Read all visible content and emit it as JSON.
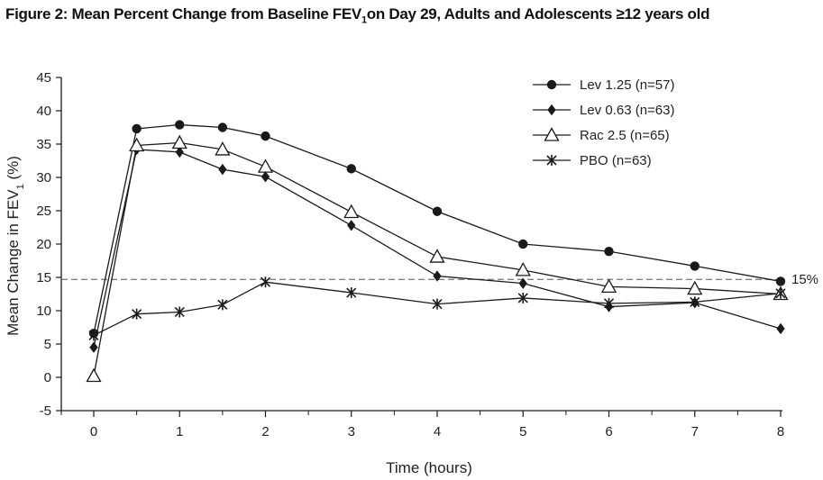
{
  "title": {
    "main": "Figure 2: Mean Percent Change from Baseline FEV",
    "sub": "1",
    "rest": "on Day 29, Adults and Adolescents ≥12 years old"
  },
  "chart_data": {
    "type": "line",
    "title": "Figure 2: Mean Percent Change from Baseline FEV1 on Day 29, Adults and Adolescents ≥12 years old",
    "xlabel": "Time (hours)",
    "ylabel": "Mean Change in FEV1 (%)",
    "xlim": [
      -0.4,
      8
    ],
    "ylim": [
      -5,
      45
    ],
    "x_ticks": [
      0,
      1,
      2,
      3,
      4,
      5,
      6,
      7,
      8
    ],
    "y_ticks": [
      -5,
      0,
      5,
      10,
      15,
      20,
      25,
      30,
      35,
      40,
      45
    ],
    "reference_line": {
      "value": 14.7,
      "label": "15%"
    },
    "grid": false,
    "legend_position": "top-right",
    "series": [
      {
        "name": "Lev 1.25 (n=57)",
        "marker": "circle",
        "x": [
          0,
          0.5,
          1,
          1.5,
          2,
          3,
          4,
          5,
          6,
          7,
          8
        ],
        "y": [
          6.6,
          37.3,
          37.9,
          37.5,
          36.2,
          31.3,
          24.9,
          20.0,
          18.9,
          16.7,
          14.4
        ]
      },
      {
        "name": "Lev 0.63 (n=63)",
        "marker": "diamond",
        "x": [
          0,
          0.5,
          1,
          1.5,
          2,
          3,
          4,
          5,
          6,
          7,
          8
        ],
        "y": [
          4.5,
          34.2,
          33.8,
          31.2,
          30.1,
          22.8,
          15.2,
          14.1,
          10.6,
          11.2,
          7.3
        ]
      },
      {
        "name": "Rac 2.5 (n=65)",
        "marker": "triangle-open",
        "x": [
          0,
          0.5,
          1,
          1.5,
          2,
          3,
          4,
          5,
          6,
          7,
          8
        ],
        "y": [
          0.2,
          34.8,
          35.2,
          34.2,
          31.6,
          24.8,
          18.1,
          16.1,
          13.6,
          13.3,
          12.5
        ]
      },
      {
        "name": "PBO (n=63)",
        "marker": "star",
        "x": [
          0,
          0.5,
          1,
          1.5,
          2,
          3,
          4,
          5,
          6,
          7,
          8
        ],
        "y": [
          6.3,
          9.5,
          9.8,
          10.9,
          14.3,
          12.7,
          11.0,
          11.9,
          11.1,
          11.3,
          12.6
        ]
      }
    ]
  },
  "colors": {
    "ink": "#1a1a1a",
    "reference": "#555555"
  }
}
